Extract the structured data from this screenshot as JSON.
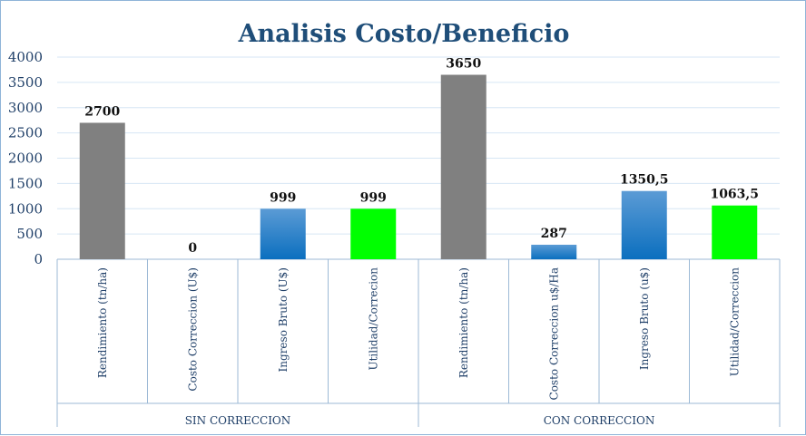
{
  "chart_data": {
    "type": "bar",
    "title": "Analisis Costo/Beneficio",
    "ylim": [
      0,
      4000
    ],
    "yticks": [
      0,
      500,
      1000,
      1500,
      2000,
      2500,
      3000,
      3500,
      4000
    ],
    "grid": true,
    "groups": [
      {
        "label": "SIN CORRECCION",
        "bars": [
          {
            "category": "Rendimiento (tn/ha)",
            "value": 2700,
            "label": "2700",
            "color": "#808080"
          },
          {
            "category": "Costo Correccion (U$)",
            "value": 0,
            "label": "0",
            "color": "#2e75b6"
          },
          {
            "category": "Ingreso Bruto (U$)",
            "value": 999,
            "label": "999",
            "color": "#2e75b6"
          },
          {
            "category": "Utilidad/Correcion",
            "value": 999,
            "label": "999",
            "color": "#00ff00"
          }
        ]
      },
      {
        "label": "CON CORRECCION",
        "bars": [
          {
            "category": "Rendimiento (tn/ha)",
            "value": 3650,
            "label": "3650",
            "color": "#808080"
          },
          {
            "category": "Costo Correccion u$/Ha",
            "value": 287,
            "label": "287",
            "color": "#2e75b6"
          },
          {
            "category": "Ingreso Bruto (u$)",
            "value": 1350.5,
            "label": "1350,5",
            "color": "#2e75b6"
          },
          {
            "category": "Utilidad/Correccion",
            "value": 1063.5,
            "label": "1063,5",
            "color": "#00ff00"
          }
        ]
      }
    ]
  }
}
